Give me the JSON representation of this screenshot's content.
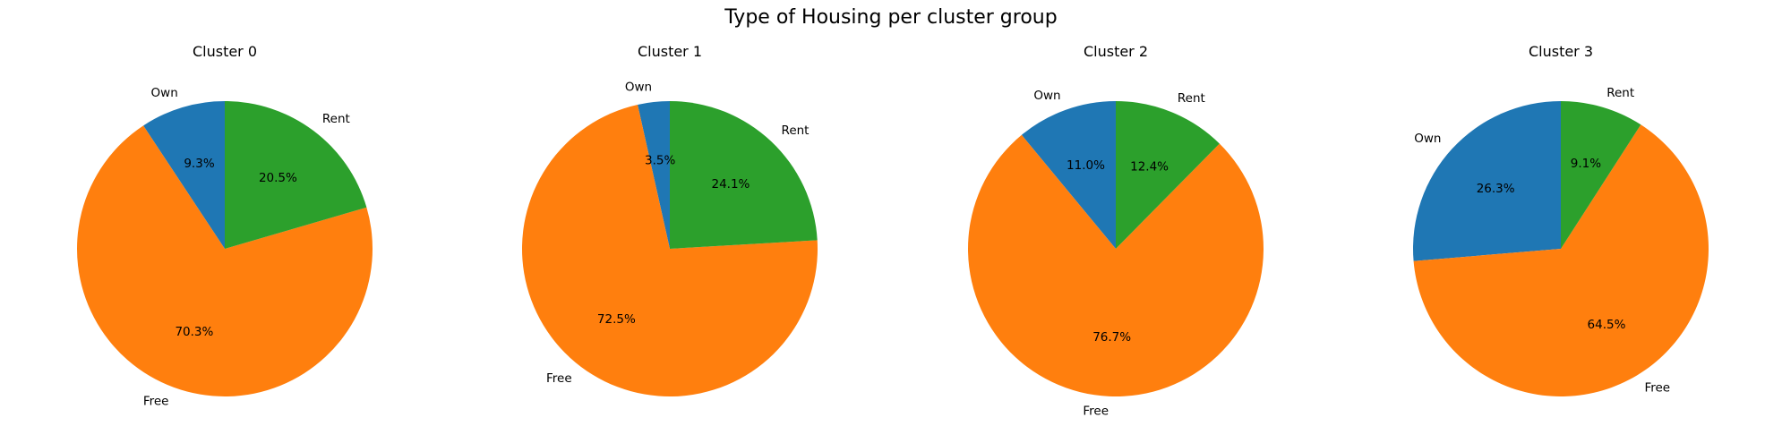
{
  "chart_data": {
    "type": "pie",
    "title": "Type of Housing per cluster group",
    "colors": {
      "Own": "#1f77b4",
      "Free": "#ff7f0e",
      "Rent": "#2ca02c"
    },
    "start_angle": 90,
    "direction": "counterclockwise",
    "pies": [
      {
        "title": "Cluster 0",
        "slices": [
          {
            "label": "Own",
            "value": 9.3,
            "display": "9.3%"
          },
          {
            "label": "Free",
            "value": 70.3,
            "display": "70.3%"
          },
          {
            "label": "Rent",
            "value": 20.5,
            "display": "20.5%"
          }
        ]
      },
      {
        "title": "Cluster 1",
        "slices": [
          {
            "label": "Own",
            "value": 3.5,
            "display": "3.5%"
          },
          {
            "label": "Free",
            "value": 72.5,
            "display": "72.5%"
          },
          {
            "label": "Rent",
            "value": 24.1,
            "display": "24.1%"
          }
        ]
      },
      {
        "title": "Cluster 2",
        "slices": [
          {
            "label": "Own",
            "value": 11.0,
            "display": "11.0%"
          },
          {
            "label": "Free",
            "value": 76.7,
            "display": "76.7%"
          },
          {
            "label": "Rent",
            "value": 12.4,
            "display": "12.4%"
          }
        ]
      },
      {
        "title": "Cluster 3",
        "slices": [
          {
            "label": "Own",
            "value": 26.3,
            "display": "26.3%"
          },
          {
            "label": "Free",
            "value": 64.5,
            "display": "64.5%"
          },
          {
            "label": "Rent",
            "value": 9.1,
            "display": "9.1%"
          }
        ]
      }
    ]
  }
}
